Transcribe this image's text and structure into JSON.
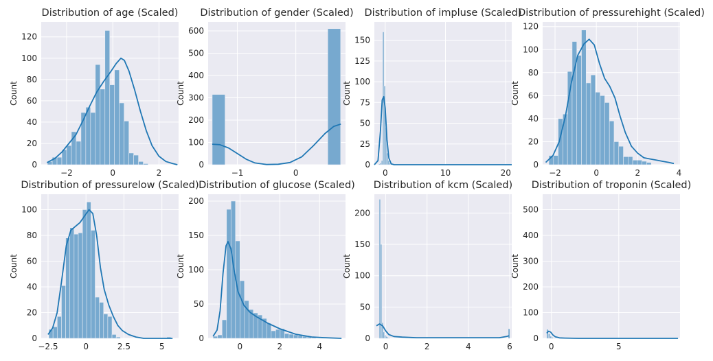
{
  "colors": {
    "bar": "#77a9cf",
    "bar_edge": "#e8ecf4",
    "kde": "#1f77b4",
    "panel_bg": "#eaeaf2",
    "grid": "#ffffff"
  },
  "chart_data": [
    {
      "type": "bar",
      "subtype": "histogram+kde",
      "title": "Distribution of age (Scaled)",
      "ylabel": "Count",
      "xlim": [
        -3.1,
        2.85
      ],
      "ylim": [
        0,
        134
      ],
      "xticks": [
        -2,
        0,
        2
      ],
      "yticks": [
        0,
        20,
        40,
        60,
        80,
        100,
        120
      ],
      "bins": {
        "edges_start": -2.83,
        "width": 0.2075
      },
      "counts": [
        3,
        7,
        7,
        14,
        18,
        31,
        22,
        49,
        54,
        49,
        94,
        71,
        126,
        75,
        89,
        58,
        41,
        11,
        9,
        3,
        1
      ],
      "kde": [
        [
          -2.85,
          2
        ],
        [
          -2.5,
          6
        ],
        [
          -2.2,
          12
        ],
        [
          -1.9,
          20
        ],
        [
          -1.6,
          28
        ],
        [
          -1.3,
          41
        ],
        [
          -1.0,
          55
        ],
        [
          -0.7,
          68
        ],
        [
          -0.4,
          78
        ],
        [
          -0.1,
          87
        ],
        [
          0.15,
          95
        ],
        [
          0.35,
          100
        ],
        [
          0.5,
          98
        ],
        [
          0.7,
          88
        ],
        [
          0.95,
          70
        ],
        [
          1.2,
          50
        ],
        [
          1.45,
          32
        ],
        [
          1.7,
          18
        ],
        [
          2.0,
          8
        ],
        [
          2.3,
          3
        ],
        [
          2.6,
          1
        ],
        [
          2.8,
          0
        ]
      ]
    },
    {
      "type": "bar",
      "subtype": "histogram+kde",
      "title": "Distribution of gender (Scaled)",
      "ylabel": "Count",
      "xlim": [
        -1.5,
        0.85
      ],
      "ylim": [
        0,
        640
      ],
      "xticks": [
        -1,
        0
      ],
      "yticks": [
        0,
        100,
        200,
        300,
        400,
        500,
        600
      ],
      "bins": {
        "edges_start": -1.43,
        "width": 0.2196
      },
      "counts": [
        315,
        0,
        0,
        0,
        0,
        0,
        0,
        0,
        0,
        610
      ],
      "kde": [
        [
          -1.43,
          92
        ],
        [
          -1.3,
          90
        ],
        [
          -1.15,
          75
        ],
        [
          -1.0,
          50
        ],
        [
          -0.85,
          25
        ],
        [
          -0.7,
          8
        ],
        [
          -0.5,
          1
        ],
        [
          -0.3,
          2
        ],
        [
          -0.1,
          10
        ],
        [
          0.1,
          35
        ],
        [
          0.3,
          85
        ],
        [
          0.5,
          140
        ],
        [
          0.65,
          172
        ],
        [
          0.77,
          182
        ]
      ]
    },
    {
      "type": "bar",
      "subtype": "histogram+kde",
      "title": "Distribution of impluse (Scaled)",
      "ylabel": "Count",
      "xlim": [
        -1.8,
        21.0
      ],
      "ylim": [
        0,
        172
      ],
      "xticks": [
        0,
        10,
        20
      ],
      "yticks": [
        0,
        25,
        50,
        75,
        100,
        125,
        150
      ],
      "bins": {
        "edges_start": -1.3,
        "width": 0.22
      },
      "counts": [
        0,
        1,
        2,
        5,
        160,
        95,
        45,
        14,
        5,
        2,
        1,
        0
      ],
      "kde": [
        [
          -1.8,
          0
        ],
        [
          -1.2,
          5
        ],
        [
          -0.8,
          40
        ],
        [
          -0.5,
          78
        ],
        [
          -0.25,
          82
        ],
        [
          0.0,
          68
        ],
        [
          0.3,
          30
        ],
        [
          0.6,
          8
        ],
        [
          1.0,
          1
        ],
        [
          1.5,
          0
        ],
        [
          21.0,
          0
        ]
      ]
    },
    {
      "type": "bar",
      "subtype": "histogram+kde",
      "title": "Distribution of pressurehight (Scaled)",
      "ylabel": "Count",
      "xlim": [
        -2.6,
        4.05
      ],
      "ylim": [
        0,
        124
      ],
      "xticks": [
        -2,
        0,
        2,
        4
      ],
      "yticks": [
        0,
        20,
        40,
        60,
        80,
        100,
        120
      ],
      "bins": {
        "edges_start": -2.3,
        "width": 0.2255
      },
      "counts": [
        8,
        8,
        40,
        44,
        81,
        107,
        95,
        117,
        71,
        78,
        63,
        60,
        54,
        38,
        20,
        16,
        7,
        7,
        4,
        4,
        3,
        2
      ],
      "kde": [
        [
          -2.45,
          2
        ],
        [
          -2.1,
          8
        ],
        [
          -1.8,
          20
        ],
        [
          -1.5,
          42
        ],
        [
          -1.2,
          72
        ],
        [
          -0.9,
          95
        ],
        [
          -0.6,
          105
        ],
        [
          -0.35,
          109
        ],
        [
          -0.1,
          104
        ],
        [
          0.15,
          88
        ],
        [
          0.4,
          75
        ],
        [
          0.65,
          68
        ],
        [
          0.9,
          58
        ],
        [
          1.15,
          42
        ],
        [
          1.4,
          28
        ],
        [
          1.7,
          16
        ],
        [
          2.0,
          10
        ],
        [
          2.3,
          6
        ],
        [
          2.6,
          5
        ],
        [
          2.9,
          4
        ],
        [
          3.2,
          3
        ],
        [
          3.5,
          2
        ],
        [
          3.75,
          1
        ]
      ]
    },
    {
      "type": "bar",
      "subtype": "histogram+kde",
      "title": "Distribution of pressurelow (Scaled)",
      "ylabel": "Count",
      "xlim": [
        -2.95,
        6.1
      ],
      "ylim": [
        0,
        112
      ],
      "xticks": [
        -2.5,
        0.0,
        2.5,
        5.0
      ],
      "yticks": [
        0,
        20,
        40,
        60,
        80,
        100
      ],
      "bins": {
        "edges_start": -2.45,
        "width": 0.2775
      },
      "counts": [
        7,
        9,
        17,
        41,
        78,
        86,
        81,
        82,
        100,
        106,
        84,
        32,
        28,
        19,
        17,
        3,
        1,
        0,
        0,
        0,
        0,
        0,
        0,
        0,
        0,
        0,
        0,
        0,
        1
      ],
      "kde": [
        [
          -2.5,
          3
        ],
        [
          -2.2,
          8
        ],
        [
          -1.9,
          20
        ],
        [
          -1.6,
          45
        ],
        [
          -1.3,
          72
        ],
        [
          -1.0,
          84
        ],
        [
          -0.7,
          87
        ],
        [
          -0.4,
          90
        ],
        [
          -0.1,
          95
        ],
        [
          0.2,
          100
        ],
        [
          0.45,
          97
        ],
        [
          0.7,
          80
        ],
        [
          0.95,
          55
        ],
        [
          1.2,
          38
        ],
        [
          1.5,
          26
        ],
        [
          1.8,
          17
        ],
        [
          2.1,
          10
        ],
        [
          2.4,
          6
        ],
        [
          2.8,
          3
        ],
        [
          3.3,
          1
        ],
        [
          3.8,
          0
        ],
        [
          4.5,
          0
        ],
        [
          5.7,
          0
        ]
      ]
    },
    {
      "type": "bar",
      "subtype": "histogram+kde",
      "title": "Distribution of glucose (Scaled)",
      "ylabel": "Count",
      "xlim": [
        -1.6,
        5.3
      ],
      "ylim": [
        0,
        210
      ],
      "xticks": [
        0,
        2,
        4
      ],
      "yticks": [
        0,
        50,
        100,
        150,
        200
      ],
      "bins": {
        "edges_start": -1.35,
        "width": 0.2245
      },
      "counts": [
        3,
        5,
        27,
        188,
        200,
        142,
        84,
        55,
        42,
        37,
        34,
        29,
        22,
        11,
        13,
        14,
        7,
        6,
        5,
        4,
        3,
        2,
        1
      ],
      "kde": [
        [
          -1.35,
          3
        ],
        [
          -1.15,
          12
        ],
        [
          -1.0,
          40
        ],
        [
          -0.85,
          95
        ],
        [
          -0.7,
          135
        ],
        [
          -0.6,
          141
        ],
        [
          -0.45,
          130
        ],
        [
          -0.3,
          100
        ],
        [
          -0.1,
          68
        ],
        [
          0.2,
          48
        ],
        [
          0.5,
          38
        ],
        [
          0.8,
          32
        ],
        [
          1.1,
          27
        ],
        [
          1.4,
          22
        ],
        [
          1.7,
          18
        ],
        [
          2.0,
          14
        ],
        [
          2.4,
          10
        ],
        [
          2.8,
          6
        ],
        [
          3.2,
          4
        ],
        [
          3.6,
          2
        ],
        [
          4.2,
          1
        ],
        [
          5.1,
          0
        ]
      ]
    },
    {
      "type": "bar",
      "subtype": "histogram+kde",
      "title": "Distribution of kcm (Scaled)",
      "ylabel": "Count",
      "xlim": [
        -0.55,
        6.1
      ],
      "ylim": [
        0,
        230
      ],
      "xticks": [
        0,
        2,
        4,
        6
      ],
      "yticks": [
        0,
        50,
        100,
        150,
        200
      ],
      "bins": {
        "edges_start": -0.38,
        "width": 0.0635
      },
      "counts": [
        0,
        222,
        150,
        25,
        10,
        5,
        3,
        2,
        1
      ],
      "spike": {
        "x": 5.97,
        "count": 15
      },
      "kde": [
        [
          -0.45,
          20
        ],
        [
          -0.3,
          23
        ],
        [
          -0.15,
          20
        ],
        [
          0.0,
          12
        ],
        [
          0.15,
          6
        ],
        [
          0.4,
          3
        ],
        [
          0.8,
          2
        ],
        [
          1.5,
          1
        ],
        [
          2.5,
          1
        ],
        [
          4.0,
          1
        ],
        [
          5.5,
          1
        ],
        [
          5.85,
          3
        ],
        [
          5.97,
          4
        ]
      ]
    },
    {
      "type": "bar",
      "subtype": "histogram+kde",
      "title": "Distribution of troponin (Scaled)",
      "ylabel": "Count",
      "xlim": [
        -0.65,
        9.55
      ],
      "ylim": [
        0,
        560
      ],
      "xticks": [
        0,
        5
      ],
      "yticks": [
        0,
        100,
        200,
        300,
        400,
        500
      ],
      "bins": {
        "edges_start": -0.35,
        "width": 0.12
      },
      "counts": [
        35,
        18,
        8,
        4,
        2,
        1,
        0,
        0
      ],
      "kde": [
        [
          -0.35,
          20
        ],
        [
          -0.2,
          28
        ],
        [
          -0.05,
          24
        ],
        [
          0.1,
          14
        ],
        [
          0.3,
          6
        ],
        [
          0.6,
          2
        ],
        [
          1.0,
          1
        ],
        [
          2.0,
          0
        ],
        [
          5.0,
          0
        ],
        [
          9.4,
          0
        ]
      ]
    }
  ]
}
